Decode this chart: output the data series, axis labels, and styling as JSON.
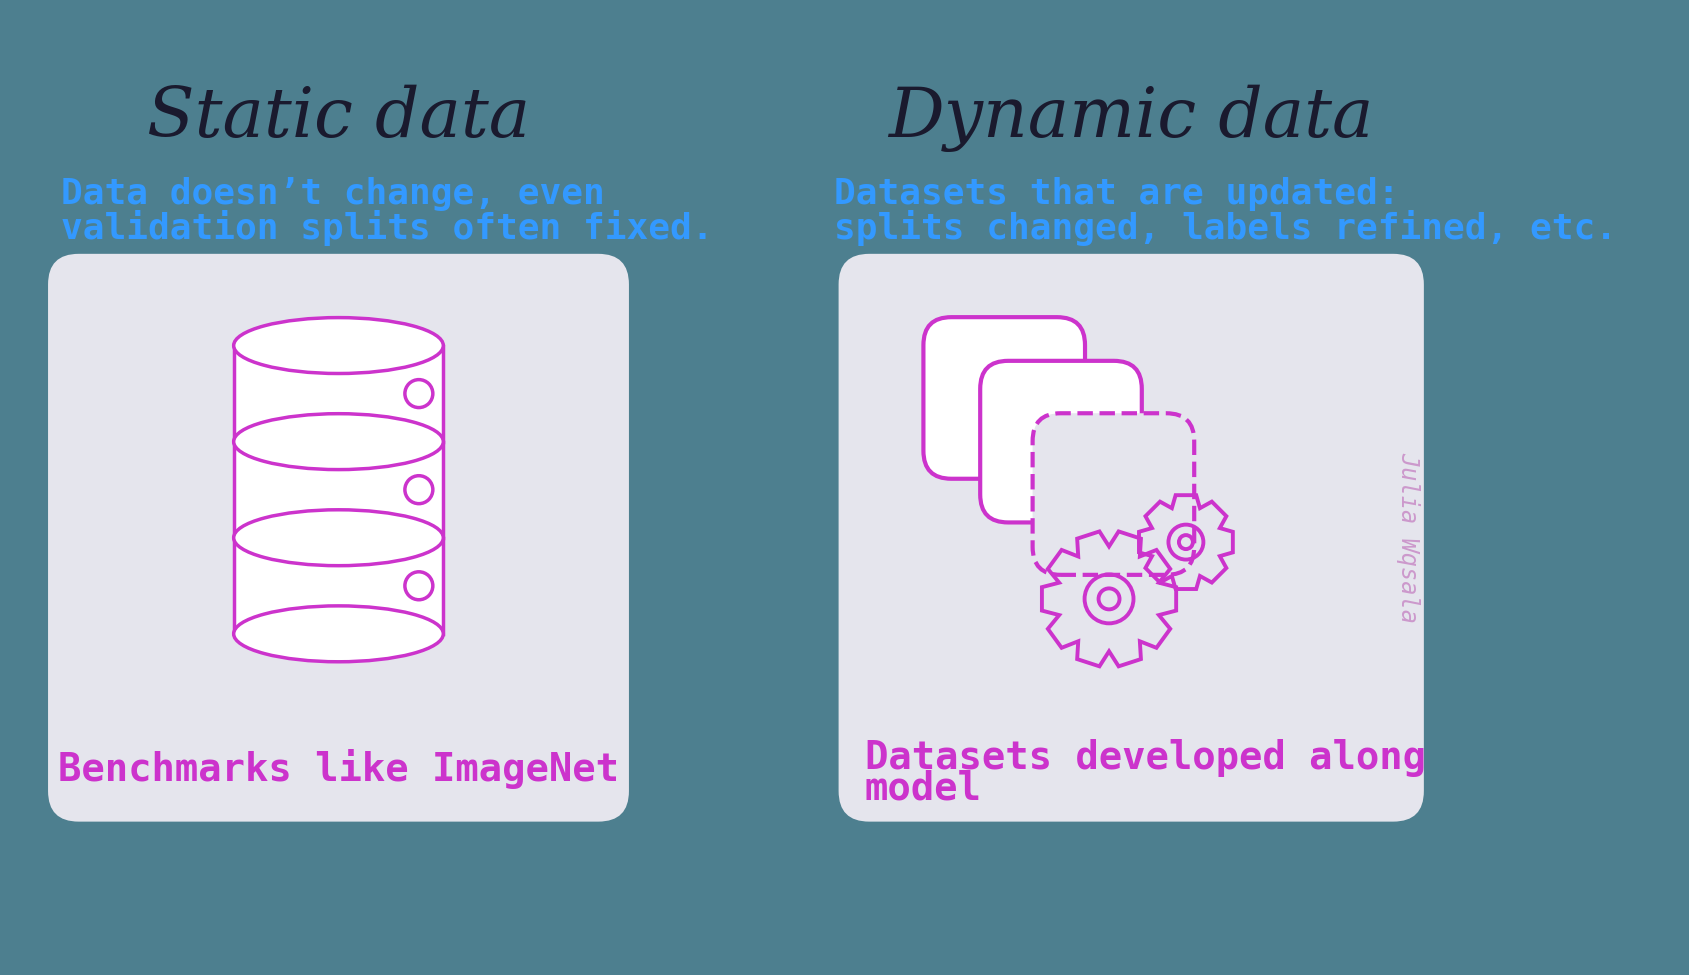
{
  "bg_color": "#4d7f8f",
  "panel_color": "#e5e5ed",
  "title_color": "#1a1a2e",
  "subtitle_color": "#3399ff",
  "icon_color": "#cc33cc",
  "caption_color": "#cc33cc",
  "watermark_color": "#cc99cc",
  "left_title": "Static data",
  "right_title": "Dynamic data",
  "left_subtitle_line1": "Data doesn’t change, even",
  "left_subtitle_line2": "validation splits often fixed.",
  "right_subtitle_line1": "Datasets that are updated:",
  "right_subtitle_line2": "splits changed, labels refined, etc.",
  "left_caption": "Benchmarks like ImageNet",
  "right_caption_line1": "Datasets developed along",
  "right_caption_line2": "model",
  "watermark": "Julia Wqsala",
  "fig_w": 16.89,
  "fig_h": 9.75,
  "dpi": 100
}
